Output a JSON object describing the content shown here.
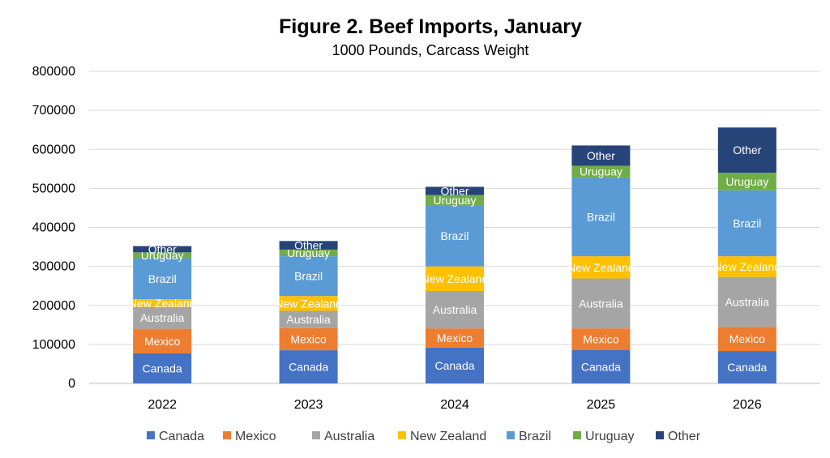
{
  "chart_data": {
    "type": "bar",
    "stacked": true,
    "title": "Figure 2. Beef Imports, January",
    "subtitle": "1000 Pounds, Carcass Weight",
    "xlabel": "",
    "ylabel": "",
    "ylim": [
      0,
      800000
    ],
    "yticks": [
      "0",
      "100000",
      "200000",
      "300000",
      "400000",
      "500000",
      "600000",
      "700000",
      "800000"
    ],
    "grid": true,
    "legend_position": "bottom",
    "categories": [
      "2022",
      "2023",
      "2024",
      "2025",
      "2026"
    ],
    "series": [
      {
        "name": "Canada",
        "color": "#4472C4",
        "values": [
          77000,
          85000,
          92000,
          86000,
          83000
        ]
      },
      {
        "name": "Mexico",
        "color": "#ED7D31",
        "values": [
          63000,
          57000,
          49000,
          55000,
          62000
        ]
      },
      {
        "name": "Australia",
        "color": "#A5A5A5",
        "values": [
          56000,
          44000,
          96000,
          128000,
          128000
        ]
      },
      {
        "name": "New Zealand",
        "color": "#FFC000",
        "values": [
          20000,
          38000,
          63000,
          57000,
          53000
        ]
      },
      {
        "name": "Brazil",
        "color": "#5B9BD5",
        "values": [
          105000,
          102000,
          156000,
          202000,
          169000
        ]
      },
      {
        "name": "Uruguay",
        "color": "#70AD47",
        "values": [
          15000,
          17000,
          27000,
          30000,
          45000
        ]
      },
      {
        "name": "Other",
        "color": "#264478",
        "values": [
          16000,
          22000,
          21000,
          52000,
          116000
        ]
      }
    ]
  }
}
